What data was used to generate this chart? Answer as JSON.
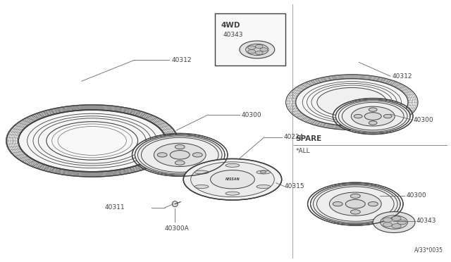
{
  "bg_color": "#ffffff",
  "lc": "#404040",
  "lc_light": "#888888",
  "lc_mid": "#666666",
  "figsize": [
    6.4,
    3.72
  ],
  "dpi": 100,
  "diagram_code": "A/33*0035",
  "spare_text": "SPARE",
  "all_text": "*ALL",
  "label_4wd": "4WD",
  "part_numbers": {
    "main_tire": "40312",
    "main_wheel": "40300",
    "main_cap": "40224",
    "main_nut": "40311",
    "main_valve": "40300A",
    "main_hubcap": "40315",
    "right_top_tire": "40312",
    "right_top_wheel": "40300",
    "right_bot_wheel": "40300",
    "right_bot_orn": "40343",
    "box_orn": "40343"
  }
}
